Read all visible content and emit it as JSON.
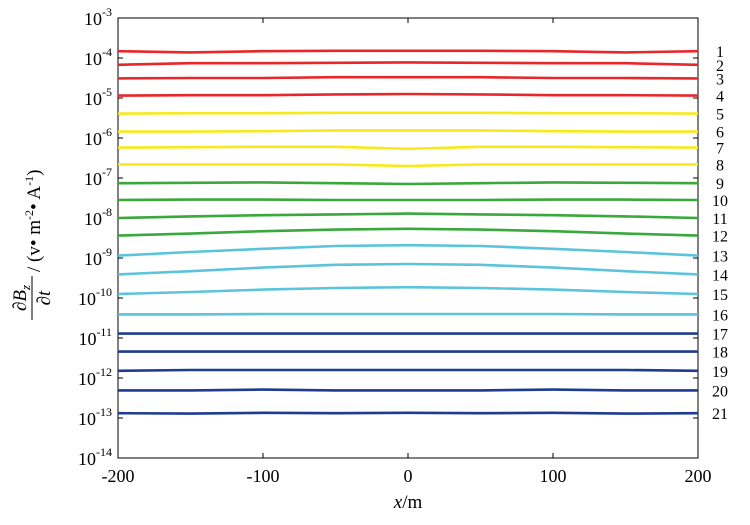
{
  "chart_data": {
    "type": "line",
    "xlabel": "x/m",
    "xlabel_parts": {
      "var": "x",
      "unit": "/m"
    },
    "ylabel_parts": {
      "frac_num": "∂B",
      "frac_num_sub": "z",
      "frac_den": "∂t",
      "unit_pre": "/ (v",
      "unit_mid1": "• m",
      "unit_exp1": "-2",
      "unit_mid2": "• A",
      "unit_exp2": "-1",
      "unit_post": ")"
    },
    "xlim": [
      -200,
      200
    ],
    "ylim_log10": [
      -14,
      -3
    ],
    "yscale": "log",
    "grid": false,
    "legend": "none",
    "x_ticks": [
      {
        "value": -200,
        "label": "-200"
      },
      {
        "value": -100,
        "label": "-100"
      },
      {
        "value": 0,
        "label": "0"
      },
      {
        "value": 100,
        "label": "100"
      },
      {
        "value": 200,
        "label": "200"
      }
    ],
    "y_ticks": [
      {
        "exp": -3,
        "base": "10",
        "sup": "-3"
      },
      {
        "exp": -4,
        "base": "10",
        "sup": "-4"
      },
      {
        "exp": -5,
        "base": "10",
        "sup": "-5"
      },
      {
        "exp": -6,
        "base": "10",
        "sup": "-6"
      },
      {
        "exp": -7,
        "base": "10",
        "sup": "-7"
      },
      {
        "exp": -8,
        "base": "10",
        "sup": "-8"
      },
      {
        "exp": -9,
        "base": "10",
        "sup": "-9"
      },
      {
        "exp": -10,
        "base": "10",
        "sup": "-10"
      },
      {
        "exp": -11,
        "base": "10",
        "sup": "-11"
      },
      {
        "exp": -12,
        "base": "10",
        "sup": "-12"
      },
      {
        "exp": -13,
        "base": "10",
        "sup": "-13"
      },
      {
        "exp": -14,
        "base": "10",
        "sup": "-14"
      }
    ],
    "x": [
      -200,
      -150,
      -100,
      -50,
      0,
      50,
      100,
      150,
      200
    ],
    "series": [
      {
        "name": "1",
        "color": "#e8272a",
        "y_log10": [
          -3.83,
          -3.86,
          -3.83,
          -3.82,
          -3.82,
          -3.82,
          -3.83,
          -3.86,
          -3.83
        ]
      },
      {
        "name": "2",
        "color": "#e8272a",
        "y_log10": [
          -4.17,
          -4.13,
          -4.13,
          -4.12,
          -4.11,
          -4.12,
          -4.13,
          -4.13,
          -4.17
        ]
      },
      {
        "name": "3",
        "color": "#e8272a",
        "y_log10": [
          -4.51,
          -4.5,
          -4.5,
          -4.48,
          -4.48,
          -4.48,
          -4.5,
          -4.5,
          -4.51
        ]
      },
      {
        "name": "4",
        "color": "#e8272a",
        "y_log10": [
          -4.94,
          -4.93,
          -4.93,
          -4.91,
          -4.9,
          -4.91,
          -4.93,
          -4.93,
          -4.94
        ]
      },
      {
        "name": "5",
        "color": "#f7ea1c",
        "y_log10": [
          -5.39,
          -5.38,
          -5.38,
          -5.37,
          -5.37,
          -5.37,
          -5.38,
          -5.38,
          -5.39
        ]
      },
      {
        "name": "6",
        "color": "#f7ea1c",
        "y_log10": [
          -5.84,
          -5.84,
          -5.83,
          -5.81,
          -5.81,
          -5.81,
          -5.83,
          -5.84,
          -5.84
        ]
      },
      {
        "name": "7",
        "color": "#f7ea1c",
        "y_log10": [
          -6.24,
          -6.23,
          -6.22,
          -6.22,
          -6.27,
          -6.22,
          -6.22,
          -6.23,
          -6.24
        ]
      },
      {
        "name": "8",
        "color": "#f7ea1c",
        "y_log10": [
          -6.66,
          -6.66,
          -6.66,
          -6.66,
          -6.7,
          -6.66,
          -6.66,
          -6.66,
          -6.66
        ]
      },
      {
        "name": "9",
        "color": "#3aa83b",
        "y_log10": [
          -7.13,
          -7.12,
          -7.11,
          -7.13,
          -7.15,
          -7.13,
          -7.11,
          -7.12,
          -7.13
        ]
      },
      {
        "name": "10",
        "color": "#3aa83b",
        "y_log10": [
          -7.55,
          -7.54,
          -7.54,
          -7.55,
          -7.55,
          -7.55,
          -7.54,
          -7.54,
          -7.55
        ]
      },
      {
        "name": "11",
        "color": "#3aa83b",
        "y_log10": [
          -8.0,
          -7.96,
          -7.93,
          -7.91,
          -7.89,
          -7.91,
          -7.93,
          -7.96,
          -8.0
        ]
      },
      {
        "name": "12",
        "color": "#3aa83b",
        "y_log10": [
          -8.44,
          -8.39,
          -8.33,
          -8.29,
          -8.27,
          -8.29,
          -8.33,
          -8.39,
          -8.44
        ]
      },
      {
        "name": "13",
        "color": "#5bc4dc",
        "y_log10": [
          -8.94,
          -8.85,
          -8.77,
          -8.7,
          -8.68,
          -8.7,
          -8.77,
          -8.85,
          -8.94
        ]
      },
      {
        "name": "14",
        "color": "#5bc4dc",
        "y_log10": [
          -9.41,
          -9.33,
          -9.24,
          -9.17,
          -9.15,
          -9.17,
          -9.24,
          -9.33,
          -9.41
        ]
      },
      {
        "name": "15",
        "color": "#5bc4dc",
        "y_log10": [
          -9.9,
          -9.85,
          -9.79,
          -9.75,
          -9.73,
          -9.75,
          -9.79,
          -9.85,
          -9.9
        ]
      },
      {
        "name": "16",
        "color": "#5bc4dc",
        "y_log10": [
          -10.41,
          -10.41,
          -10.4,
          -10.4,
          -10.4,
          -10.4,
          -10.4,
          -10.41,
          -10.41
        ]
      },
      {
        "name": "17",
        "color": "#1f3c8f",
        "y_log10": [
          -10.89,
          -10.89,
          -10.89,
          -10.89,
          -10.89,
          -10.89,
          -10.89,
          -10.89,
          -10.89
        ]
      },
      {
        "name": "18",
        "color": "#1f3c8f",
        "y_log10": [
          -11.34,
          -11.34,
          -11.34,
          -11.34,
          -11.34,
          -11.34,
          -11.34,
          -11.34,
          -11.34
        ]
      },
      {
        "name": "19",
        "color": "#1f3c8f",
        "y_log10": [
          -11.82,
          -11.8,
          -11.8,
          -11.8,
          -11.8,
          -11.8,
          -11.8,
          -11.8,
          -11.82
        ]
      },
      {
        "name": "20",
        "color": "#1f3c8f",
        "y_log10": [
          -12.31,
          -12.31,
          -12.29,
          -12.31,
          -12.31,
          -12.31,
          -12.29,
          -12.31,
          -12.31
        ]
      },
      {
        "name": "21",
        "color": "#1f3c8f",
        "y_log10": [
          -12.88,
          -12.89,
          -12.87,
          -12.88,
          -12.87,
          -12.88,
          -12.87,
          -12.89,
          -12.88
        ]
      }
    ]
  }
}
